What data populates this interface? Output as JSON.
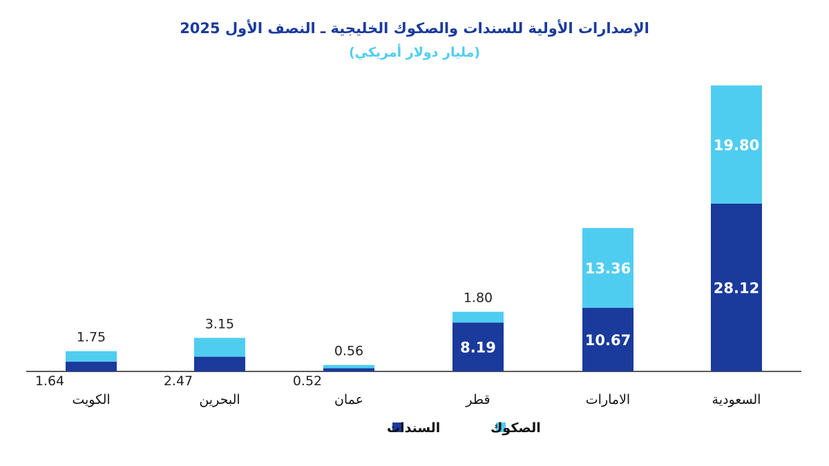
{
  "chart_data": {
    "type": "bar",
    "stacked": true,
    "title": "الإصدارات الأولية للسندات والصكوك الخليجية ـ النصف الأول 2025",
    "subtitle": "(مليار دولار أمريكي)",
    "categories": [
      "الكويت",
      "البحرين",
      "عمان",
      "قطر",
      "الامارات",
      "السعودية"
    ],
    "series": [
      {
        "name": "السندات",
        "color": "#1a3a9c",
        "values": [
          1.64,
          2.47,
          0.52,
          8.19,
          10.67,
          28.12
        ],
        "labels": [
          "1.64",
          "2.47",
          "0.52",
          "8.19",
          "10.67",
          "28.12"
        ]
      },
      {
        "name": "الصكوك",
        "color": "#4fcdf0",
        "values": [
          1.75,
          3.15,
          0.56,
          1.8,
          13.36,
          19.8
        ],
        "labels": [
          "1.75",
          "3.15",
          "0.56",
          "1.80",
          "13.36",
          "19.80"
        ]
      }
    ],
    "ylim": [
      0,
      48
    ],
    "grid": false,
    "legend_position": "bottom",
    "title_color": "#1a3a9c",
    "subtitle_color": "#4fcdf0"
  }
}
